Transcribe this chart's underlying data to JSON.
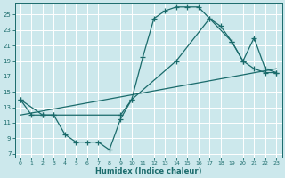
{
  "title": "",
  "xlabel": "Humidex (Indice chaleur)",
  "bg_color": "#cce8ec",
  "grid_color": "#ffffff",
  "line_color": "#1a6b6b",
  "xlim": [
    -0.5,
    23.5
  ],
  "ylim": [
    6.5,
    26.5
  ],
  "xticks": [
    0,
    1,
    2,
    3,
    4,
    5,
    6,
    7,
    8,
    9,
    10,
    11,
    12,
    13,
    14,
    15,
    16,
    17,
    18,
    19,
    20,
    21,
    22,
    23
  ],
  "yticks": [
    7,
    9,
    11,
    13,
    15,
    17,
    19,
    21,
    23,
    25
  ],
  "curve1_x": [
    0,
    1,
    2,
    3,
    4,
    5,
    6,
    7,
    8,
    9,
    10,
    11,
    12,
    13,
    14,
    15,
    16,
    17,
    18,
    19,
    20,
    21,
    22,
    23
  ],
  "curve1_y": [
    14,
    12,
    12,
    12,
    9.5,
    8.5,
    8.5,
    8.5,
    7.5,
    11.5,
    14,
    19.5,
    24.5,
    25.5,
    26,
    26,
    26,
    24.5,
    23.5,
    21.5,
    19,
    18,
    17.5,
    17.5
  ],
  "curve2_x": [
    0,
    2,
    3,
    9,
    10,
    14,
    17,
    19,
    20,
    21,
    22,
    23
  ],
  "curve2_y": [
    14,
    12,
    12,
    12,
    14,
    19,
    24.5,
    21.5,
    19,
    22,
    18,
    17.5
  ],
  "curve3_x": [
    0,
    23
  ],
  "curve3_y": [
    12,
    18
  ]
}
